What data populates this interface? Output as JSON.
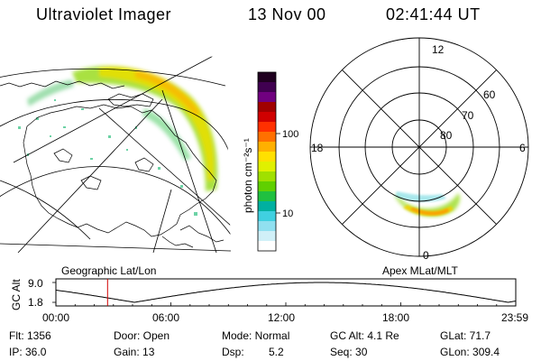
{
  "header": {
    "title": "Ultraviolet Imager",
    "date": "13 Nov 00",
    "time": "02:41:44 UT"
  },
  "geo_map": {
    "label": "Geographic Lat/Lon"
  },
  "colorbar": {
    "label": "photon cm⁻²s⁻¹",
    "ticks": [
      {
        "label": "100",
        "value": 100
      },
      {
        "label": "10",
        "value": 10
      }
    ],
    "colors": [
      "#200020",
      "#400050",
      "#700080",
      "#a00000",
      "#d00000",
      "#ff3000",
      "#ff7000",
      "#ffb000",
      "#ffe000",
      "#e0f000",
      "#a0e000",
      "#60d000",
      "#20c040",
      "#00b0a0",
      "#40d0e0",
      "#90e0f0",
      "#d0f0f8",
      "#ffffff"
    ]
  },
  "polar": {
    "label": "Apex MLat/MLT",
    "mlt_labels": {
      "top": "12",
      "right": "6",
      "bottom": "0",
      "left": "18"
    },
    "lat_labels": [
      "60",
      "70",
      "80"
    ]
  },
  "altitude_plot": {
    "ylabel": "GC Alt",
    "y_ticks": [
      "9.0",
      "1.8"
    ],
    "x_ticks": [
      "00:00",
      "06:00",
      "12:00",
      "18:00",
      "23:59"
    ],
    "y_range": [
      1.8,
      9.0
    ],
    "x_range_hours": [
      0,
      24
    ],
    "marker_hour": 2.695,
    "marker_color": "#d00000"
  },
  "info": {
    "flt": "Flt: 1356",
    "ip": "IP: 36.0",
    "door": "Door: Open",
    "gain": "Gain: 13",
    "mode": "Mode: Normal",
    "dsp_label": "Dsp:",
    "dsp_value": "5.2",
    "gc_alt": "GC Alt: 4.1 Re",
    "seq": "Seq: 30",
    "glat": "GLat: 71.7",
    "glon": "GLon: 309.4"
  }
}
